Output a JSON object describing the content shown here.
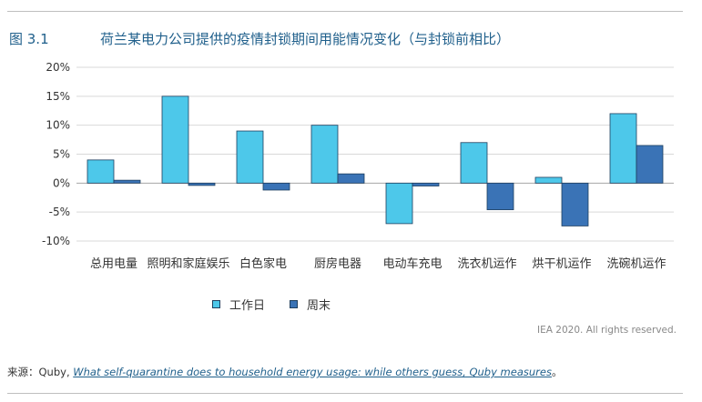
{
  "figure_number": "图 3.1",
  "chart_data": {
    "type": "bar",
    "title": "荷兰某电力公司提供的疫情封锁期间用能情况变化（与封锁前相比）",
    "categories": [
      "总用电量",
      "照明和家庭娱乐",
      "白色家电",
      "厨房电器",
      "电动车充电",
      "洗衣机运作",
      "烘干机运作",
      "洗碗机运作"
    ],
    "series": [
      {
        "name": "工作日",
        "color": "#4dc8ea",
        "values": [
          4,
          15,
          9,
          10,
          -7,
          7,
          1,
          12
        ]
      },
      {
        "name": "周末",
        "color": "#3a73b6",
        "values": [
          0.5,
          -0.4,
          -1.2,
          1.6,
          -0.5,
          -4.6,
          -7.4,
          6.5
        ]
      }
    ],
    "y_ticks": [
      "20%",
      "15%",
      "10%",
      "5%",
      "0%",
      "-5%",
      "-10%"
    ],
    "ylim": [
      -10,
      20
    ],
    "gridlines": true,
    "legend_position": "bottom"
  },
  "credit": "IEA 2020. All rights reserved.",
  "source": {
    "prefix": "来源：Quby, ",
    "link_text": "What self-quarantine does to household energy usage: while others guess, Quby measures",
    "suffix": "。"
  }
}
